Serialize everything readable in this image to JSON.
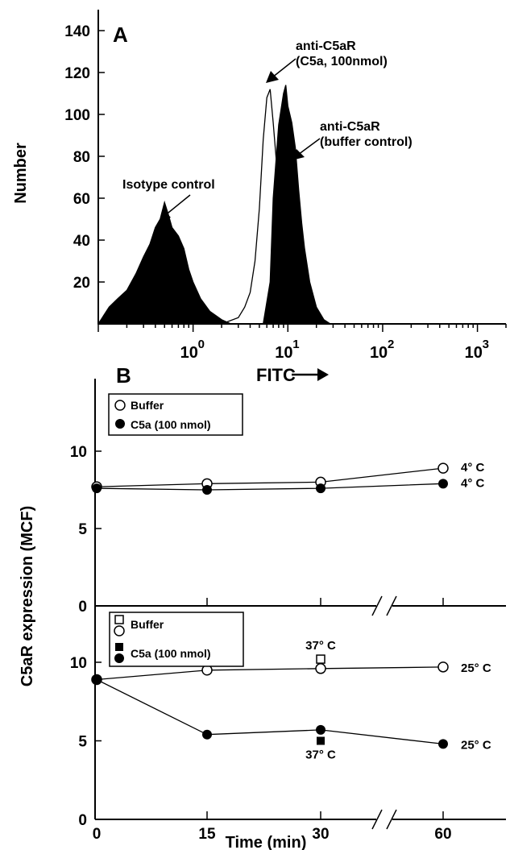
{
  "chart_data": [
    {
      "panel": "A",
      "type": "area",
      "xscale": "log",
      "xlabel": "FITC",
      "ylabel": "Number",
      "xlim": [
        0.1,
        2000
      ],
      "ylim": [
        0,
        150
      ],
      "xticks": [
        {
          "value": 1,
          "base": "10",
          "exp": "0"
        },
        {
          "value": 10,
          "base": "10",
          "exp": "1"
        },
        {
          "value": 100,
          "base": "10",
          "exp": "2"
        },
        {
          "value": 1000,
          "base": "10",
          "exp": "3"
        }
      ],
      "yticks": [
        "20",
        "40",
        "60",
        "80",
        "100",
        "120",
        "140"
      ],
      "series": [
        {
          "name": "Isotype control",
          "fill": "#000000",
          "x": [
            0.1,
            0.13,
            0.16,
            0.2,
            0.25,
            0.3,
            0.35,
            0.4,
            0.45,
            0.5,
            0.55,
            0.6,
            0.7,
            0.8,
            0.9,
            1.0,
            1.2,
            1.5,
            2.0,
            2.5
          ],
          "y": [
            0,
            8,
            12,
            16,
            24,
            32,
            38,
            46,
            50,
            58,
            52,
            46,
            42,
            36,
            26,
            20,
            12,
            6,
            2,
            0
          ]
        },
        {
          "name": "anti-C5aR (buffer control)",
          "fill": "#000000",
          "x": [
            5.5,
            6.5,
            7.0,
            8.0,
            9.0,
            9.5,
            10.0,
            11.0,
            12.0,
            13.0,
            14.0,
            15.0,
            17.0,
            20.0,
            24.0,
            28.0
          ],
          "y": [
            0,
            20,
            60,
            95,
            110,
            114,
            104,
            96,
            84,
            64,
            48,
            36,
            20,
            8,
            2,
            0
          ]
        },
        {
          "name": "anti-C5aR (C5a, 100nmol)",
          "fill": "#ffffff",
          "x": [
            2.0,
            3.0,
            3.5,
            4.0,
            4.5,
            5.0,
            5.5,
            6.0,
            6.5,
            7.0,
            8.0,
            9.0,
            10.0,
            11.0,
            12.0,
            14.0
          ],
          "y": [
            0,
            3,
            8,
            15,
            30,
            55,
            88,
            108,
            112,
            96,
            64,
            40,
            18,
            8,
            3,
            0
          ]
        }
      ],
      "annotations": [
        "Isotype control",
        "anti-C5aR",
        "(C5a, 100nmol)",
        "anti-C5aR",
        "(buffer control)"
      ]
    },
    {
      "panel": "B",
      "type": "line",
      "xlabel": "Time (min)",
      "ylabel": "C5aR expression (MCF)",
      "xticks": [
        "0",
        "15",
        "30",
        "60"
      ],
      "x": [
        0,
        15,
        30,
        60
      ],
      "subplots": [
        {
          "ylim": [
            0,
            13
          ],
          "yticks": [
            "0",
            "5",
            "10"
          ],
          "legend": [
            "Buffer",
            "C5a (100 nmol)"
          ],
          "series": [
            {
              "marker": "open-circle",
              "x": [
                0,
                15,
                30,
                60
              ],
              "y": [
                7.7,
                7.9,
                8.0,
                8.9
              ],
              "label": "4° C"
            },
            {
              "marker": "filled-circle",
              "x": [
                0,
                15,
                30,
                60
              ],
              "y": [
                7.6,
                7.5,
                7.6,
                7.9
              ],
              "label": "4° C"
            }
          ]
        },
        {
          "ylim": [
            0,
            13
          ],
          "yticks": [
            "0",
            "5",
            "10"
          ],
          "legend": [
            "Buffer",
            "C5a (100 nmol)"
          ],
          "series": [
            {
              "marker": "open-circle",
              "x": [
                0,
                15,
                30,
                60
              ],
              "y": [
                8.9,
                9.5,
                9.6,
                9.7
              ],
              "label": "25° C"
            },
            {
              "marker": "filled-circle",
              "x": [
                0,
                15,
                30,
                60
              ],
              "y": [
                8.9,
                5.4,
                5.7,
                4.8
              ],
              "label": "25° C"
            },
            {
              "marker": "open-square",
              "x": [
                30
              ],
              "y": [
                10.2
              ],
              "label": "37° C"
            },
            {
              "marker": "filled-square",
              "x": [
                30
              ],
              "y": [
                5.0
              ],
              "label": "37° C"
            }
          ]
        }
      ]
    }
  ]
}
